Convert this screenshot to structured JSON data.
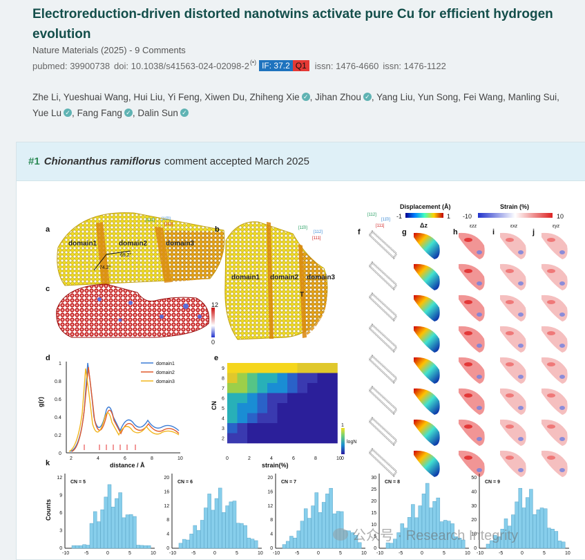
{
  "paper": {
    "title": "Electroreduction-driven distorted nanotwins activate pure Cu for efficient hydrogen evolution",
    "journal_line": "Nature Materials (2025) - 9 Comments",
    "pubmed": "pubmed: 39900738",
    "doi": "doi: 10.1038/s41563-024-02098-2",
    "if_badge": "IF: 37.2",
    "quartile": "Q1",
    "issn1": "issn: 1476-4660",
    "issn2": "issn: 1476-1122"
  },
  "authors": [
    {
      "name": "Zhe Li",
      "verified": false,
      "sep": ", "
    },
    {
      "name": "Yueshuai Wang",
      "verified": false,
      "sep": ", "
    },
    {
      "name": "Hui Liu",
      "verified": false,
      "sep": ", "
    },
    {
      "name": "Yi Feng",
      "verified": false,
      "sep": ", "
    },
    {
      "name": "Xiwen Du",
      "verified": false,
      "sep": ", "
    },
    {
      "name": "Zhiheng Xie",
      "verified": true,
      "sep": ", "
    },
    {
      "name": "Jihan Zhou",
      "verified": true,
      "sep": ", "
    },
    {
      "name": "Yang Liu",
      "verified": false,
      "sep": ", "
    },
    {
      "name": "Yun Song",
      "verified": false,
      "sep": ", "
    },
    {
      "name": "Fei Wang",
      "verified": false,
      "sep": ", "
    },
    {
      "name": "Manling Sui",
      "verified": false,
      "sep": ", "
    },
    {
      "name": "Yue Lu",
      "verified": true,
      "sep": ", "
    },
    {
      "name": "Fang Fang",
      "verified": true,
      "sep": ", "
    },
    {
      "name": "Dalin Sun",
      "verified": true,
      "sep": ""
    }
  ],
  "comment": {
    "number": "#1",
    "commenter": "Chionanthus ramiflorus",
    "status": "comment accepted March 2025"
  },
  "figure": {
    "panel_labels": [
      "a",
      "b",
      "c",
      "d",
      "e",
      "f",
      "g",
      "h",
      "i",
      "j",
      "k"
    ],
    "domains": [
      "domain1",
      "domain2",
      "domain3"
    ],
    "angle_a": "74.2°",
    "angle_b": "69.2°",
    "twin_label": "T",
    "colorbar_c": [
      "12",
      "0"
    ],
    "displacement_title": "Displacement (Å)",
    "displacement_range": [
      "-1",
      "1"
    ],
    "strain_title": "Strain (%)",
    "strain_range": [
      "-10",
      "10"
    ],
    "col_dz": "Δz",
    "col_exx": "εzz",
    "col_exz": "εxz",
    "col_eyz": "εyz",
    "axis_a": [
      "[112̄]",
      "[11̄0]",
      "[111]"
    ],
    "axis_b": [
      "[11̄0]",
      "[112]",
      "[111]"
    ],
    "axis_f": [
      "[112]",
      "[11̄0]",
      "[111]"
    ],
    "panel_d": {
      "xlabel": "distance / Å",
      "ylabel": "g(r)",
      "legend": [
        "domain1",
        "domain2",
        "domain3"
      ],
      "colors": [
        "#3a7bd5",
        "#e0582a",
        "#f2b51c"
      ],
      "yticks": [
        "0",
        "0.2",
        "0.4",
        "0.6",
        "0.8",
        "1"
      ],
      "xticks": [
        "2",
        "4",
        "6",
        "8",
        "10"
      ]
    },
    "panel_e": {
      "xlabel": "strain(%)",
      "ylabel": "CN",
      "yticks": [
        "9",
        "8",
        "7",
        "6",
        "5",
        "4",
        "3",
        "2"
      ],
      "xticks": [
        "0",
        "2",
        "4",
        "6",
        "8",
        "10"
      ],
      "colorbar_label": "logN",
      "colorbar_ticks": [
        "1",
        "0"
      ]
    },
    "panel_k": {
      "ylabel": "Counts",
      "panels": [
        {
          "title": "CN = 5",
          "yticks": [
            "12",
            "9",
            "6",
            "3",
            "0"
          ],
          "xticks": [
            "-10",
            "-5",
            "0",
            "5",
            "10"
          ]
        },
        {
          "title": "CN = 6",
          "yticks": [
            "20",
            "16",
            "12",
            "8",
            "4",
            "0"
          ],
          "xticks": [
            "-10",
            "-5",
            "0",
            "5",
            "10"
          ]
        },
        {
          "title": "CN = 7",
          "yticks": [
            "20",
            "16",
            "12",
            "8",
            "4",
            "0"
          ],
          "xticks": [
            "-10",
            "-5",
            "0",
            "5",
            "10"
          ]
        },
        {
          "title": "CN = 8",
          "yticks": [
            "30",
            "25",
            "20",
            "15",
            "10",
            "5",
            "0"
          ],
          "xticks": [
            "-10",
            "-5",
            "0",
            "5",
            "10"
          ]
        },
        {
          "title": "CN = 9",
          "yticks": [
            "50",
            "40",
            "30",
            "20",
            "10",
            "0"
          ],
          "xticks": [
            "-10",
            "-5",
            "0",
            "5",
            "10"
          ]
        }
      ]
    }
  },
  "watermark": "公众号 · Research Integrity"
}
